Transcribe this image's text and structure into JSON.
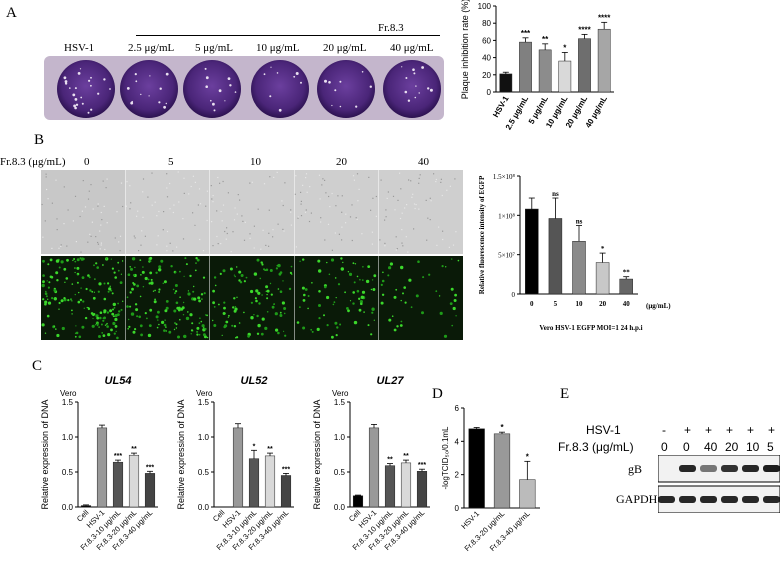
{
  "panels": {
    "a": "A",
    "b": "B",
    "c": "C",
    "d": "D",
    "e": "E"
  },
  "panelA": {
    "group_label": "Fr.8.3",
    "well_labels": [
      "HSV-1",
      "2.5 μg/mL",
      "5 μg/mL",
      "10 μg/mL",
      "20 μg/mL",
      "40 μg/mL"
    ],
    "plaque_color": "#5a2f8a"
  },
  "chart_data": [
    {
      "id": "plaque_inhibition",
      "type": "bar",
      "ylabel": "Plaque inhibition rate (%)",
      "ylim": [
        0,
        100
      ],
      "yticks": [
        "0",
        "20",
        "40",
        "60",
        "80",
        "100"
      ],
      "categories": [
        "HSV-1",
        "2.5 μg/mL",
        "5 μg/mL",
        "10 μg/mL",
        "20 μg/mL",
        "40 μg/mL"
      ],
      "values": [
        21,
        58,
        49,
        36,
        62,
        73
      ],
      "errors": [
        2,
        5,
        7,
        10,
        5,
        8
      ],
      "significance": [
        "",
        "***",
        "**",
        "*",
        "****",
        "****"
      ],
      "colors": [
        "#111111",
        "#808080",
        "#8c8c8c",
        "#d9d9d9",
        "#6e6e6e",
        "#a6a6a6"
      ]
    },
    {
      "id": "egfp_intensity",
      "type": "bar",
      "ylabel": "Relative fluorescence intensity of EGFP",
      "xlabel": "Vero HSV-1 EGFP MOI=1 24 h.p.i",
      "unit_label": "(μg/mL)",
      "ylim": [
        0,
        150000000
      ],
      "yticks": [
        "0",
        "5×10⁷",
        "1×10⁸",
        "1.5×10⁸"
      ],
      "categories": [
        "0",
        "5",
        "10",
        "20",
        "40"
      ],
      "values": [
        108000000,
        96000000,
        67000000,
        40000000,
        19000000
      ],
      "errors": [
        14000000,
        26000000,
        20000000,
        12000000,
        3000000
      ],
      "significance": [
        "",
        "ns",
        "ns",
        "*",
        "**"
      ],
      "colors": [
        "#000000",
        "#555555",
        "#8a8a8a",
        "#c8c8c8",
        "#666666"
      ]
    },
    {
      "id": "ul54",
      "type": "bar",
      "title": "UL54",
      "corner": "Vero",
      "ylabel": "Relative expression of DNA",
      "ylim": [
        0,
        1.5
      ],
      "yticks": [
        "0.0",
        "0.5",
        "1.0",
        "1.5"
      ],
      "categories": [
        "Cell",
        "HSV-1",
        "Fr.8.3-10 μg/mL",
        "Fr.8.3-20 μg/mL",
        "Fr.8.3-40 μg/mL"
      ],
      "values": [
        0.02,
        1.13,
        0.64,
        0.74,
        0.48
      ],
      "errors": [
        0.01,
        0.04,
        0.03,
        0.03,
        0.03
      ],
      "significance": [
        "",
        "",
        "***",
        "**",
        "***"
      ],
      "colors": [
        "#000000",
        "#999999",
        "#555555",
        "#d9d9d9",
        "#444444"
      ]
    },
    {
      "id": "ul52",
      "type": "bar",
      "title": "UL52",
      "corner": "Vero",
      "ylabel": "Relative expression of DNA",
      "ylim": [
        0,
        1.5
      ],
      "yticks": [
        "0.0",
        "0.5",
        "1.0",
        "1.5"
      ],
      "categories": [
        "Cell",
        "HSV-1",
        "Fr.8.3-10 μg/mL",
        "Fr.8.3-20 μg/mL",
        "Fr.8.3-40 μg/mL"
      ],
      "values": [
        0.0,
        1.13,
        0.69,
        0.73,
        0.45
      ],
      "errors": [
        0.0,
        0.06,
        0.12,
        0.04,
        0.03
      ],
      "significance": [
        "",
        "",
        "*",
        "**",
        "***"
      ],
      "colors": [
        "#000000",
        "#999999",
        "#555555",
        "#d9d9d9",
        "#444444"
      ]
    },
    {
      "id": "ul27",
      "type": "bar",
      "title": "UL27",
      "corner": "Vero",
      "ylabel": "Relative expression of DNA",
      "ylim": [
        0,
        1.5
      ],
      "yticks": [
        "0.0",
        "0.5",
        "1.0",
        "1.5"
      ],
      "categories": [
        "Cell",
        "HSV-1",
        "Fr.8.3-10 μg/mL",
        "Fr.8.3-20 μg/mL",
        "Fr.8.3-40 μg/mL"
      ],
      "values": [
        0.16,
        1.13,
        0.59,
        0.63,
        0.51
      ],
      "errors": [
        0.01,
        0.05,
        0.03,
        0.04,
        0.03
      ],
      "significance": [
        "",
        "",
        "**",
        "**",
        "***"
      ],
      "colors": [
        "#000000",
        "#999999",
        "#555555",
        "#d9d9d9",
        "#444444"
      ]
    },
    {
      "id": "tcid50",
      "type": "bar",
      "ylabel": "-logTCID₅₀/0.1mL",
      "ylim": [
        0,
        6
      ],
      "yticks": [
        "0",
        "2",
        "4",
        "6"
      ],
      "categories": [
        "HSV-1",
        "Fr.8.3-20 μg/mL",
        "Fr.8.3-40 μg/mL"
      ],
      "values": [
        4.75,
        4.45,
        1.7
      ],
      "errors": [
        0.08,
        0.1,
        1.1
      ],
      "significance": [
        "",
        "*",
        "*"
      ],
      "colors": [
        "#000000",
        "#999999",
        "#bbbbbb"
      ]
    }
  ],
  "panelB": {
    "row_label": "Fr.8.3 (μg/mL)",
    "columns": [
      "0",
      "5",
      "10",
      "20",
      "40"
    ],
    "gfp_density": [
      1.0,
      0.85,
      0.6,
      0.45,
      0.25
    ]
  },
  "panelE": {
    "row1_label": "HSV-1",
    "row2_label": "Fr.8.3 (μg/mL)",
    "row1": [
      "-",
      "+",
      "+",
      "+",
      "+",
      "+"
    ],
    "row2": [
      "0",
      "0",
      "40",
      "20",
      "10",
      "5"
    ],
    "band_labels": [
      "gB",
      "GAPDH"
    ],
    "gb_intensity": [
      0,
      0.9,
      0.55,
      0.85,
      0.9,
      0.95
    ],
    "gapdh_intensity": [
      0.9,
      0.9,
      0.9,
      0.9,
      0.9,
      0.9
    ]
  }
}
